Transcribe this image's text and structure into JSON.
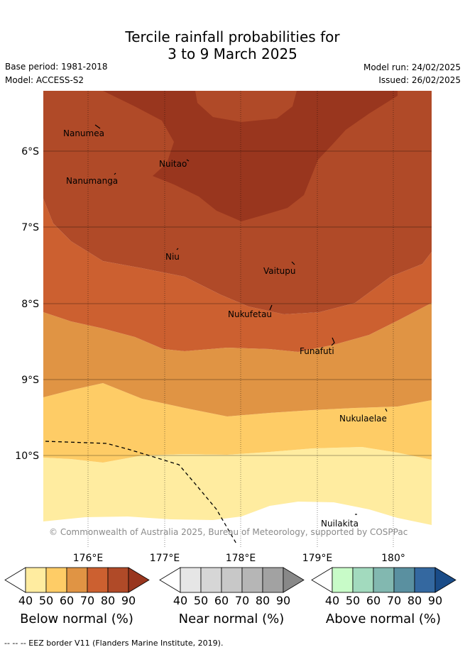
{
  "header": {
    "title_line1": "Tercile rainfall probabilities for",
    "title_line2": "3 to 9 March 2025",
    "base_period": "Base period: 1981-2018",
    "model": "Model: ACCESS-S2",
    "model_run": "Model run: 24/02/2025",
    "issued": "Issued: 26/02/2025"
  },
  "map": {
    "lat_labels": [
      "6°S",
      "7°S",
      "8°S",
      "9°S",
      "10°S"
    ],
    "lon_labels": [
      "176°E",
      "177°E",
      "178°E",
      "179°E",
      "180°"
    ],
    "places": [
      "Nanumea",
      "Nuitao",
      "Nanumanga",
      "Niu",
      "Vaitupu",
      "Nukufetau",
      "Funafuti",
      "Nukulaelae",
      "Nuilakita"
    ],
    "copyright": "© Commonwealth of Australia 2025, Bureau of Meteorology, supported by COSPPac",
    "colors": {
      "below_90": "#99361e",
      "below_80": "#b04a28",
      "below_70": "#cc6030",
      "below_60": "#e09444",
      "below_50": "#fecc66",
      "below_40": "#ffeca0"
    }
  },
  "colorbars": [
    {
      "label": "Below normal (%)",
      "ticks": [
        "40",
        "50",
        "60",
        "70",
        "80",
        "90"
      ],
      "colors": [
        "#ffeca0",
        "#fecc66",
        "#e09444",
        "#cc6030",
        "#b04a28",
        "#99361e"
      ]
    },
    {
      "label": "Near normal (%)",
      "ticks": [
        "40",
        "50",
        "60",
        "70",
        "80",
        "90"
      ],
      "colors": [
        "#e6e6e6",
        "#d6d6d6",
        "#c8c8c8",
        "#b6b6b6",
        "#a2a2a2",
        "#888888"
      ]
    },
    {
      "label": "Above normal (%)",
      "ticks": [
        "40",
        "50",
        "60",
        "70",
        "80",
        "90"
      ],
      "colors": [
        "#c8fbc8",
        "#a2dabe",
        "#82b8b0",
        "#5a90a0",
        "#3468a0",
        "#1a4c88"
      ]
    }
  ],
  "footer": "--  --  -- EEZ border V11 (Flanders Marine Institute, 2019)."
}
